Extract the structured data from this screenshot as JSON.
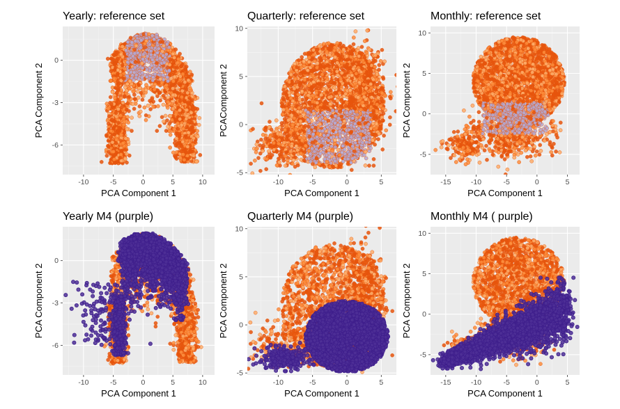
{
  "colors": {
    "reference_dark": "#e6550d",
    "reference_mid": "#fd8d3c",
    "reference_light": "#fdae6b",
    "reference_core": "#b3a9d3",
    "m4_fill": "#4d2f96",
    "m4_edge": "#3f1f8c"
  },
  "chart_data": [
    {
      "id": "yearly-ref",
      "type": "scatter",
      "title": "Yearly: reference set",
      "xlabel": "PCA Component 1",
      "ylabel": "PCA Component 2",
      "xlim": [
        -13.5,
        12
      ],
      "ylim": [
        -8.1,
        2.4
      ],
      "xticks": [
        -10,
        -5,
        0,
        5,
        10
      ],
      "yticks": [
        0,
        -3,
        -6
      ],
      "series": [
        {
          "name": "reference",
          "shape": "yearly",
          "layer": "ref",
          "n": 3200
        }
      ]
    },
    {
      "id": "quarterly-ref",
      "type": "scatter",
      "title": "Quarterly: reference set",
      "xlabel": "PCA Component 1",
      "ylabel": "PCAComponent 2",
      "xlim": [
        -14.5,
        7.2
      ],
      "ylim": [
        -5.2,
        10.2
      ],
      "xticks": [
        -10,
        -5,
        0,
        5
      ],
      "yticks": [
        10,
        5,
        0,
        -5
      ],
      "series": [
        {
          "name": "reference",
          "shape": "quarterly",
          "layer": "ref",
          "n": 3400
        }
      ]
    },
    {
      "id": "monthly-ref",
      "type": "scatter",
      "title": "Monthly: reference set",
      "xlabel": "PCA Component 1",
      "ylabel": "PCA Component 2",
      "xlim": [
        -17.5,
        7
      ],
      "ylim": [
        -7.5,
        10.8
      ],
      "xticks": [
        -15,
        -10,
        -5,
        0,
        5
      ],
      "yticks": [
        10,
        5,
        0,
        -5
      ],
      "series": [
        {
          "name": "reference",
          "shape": "monthly",
          "layer": "ref",
          "n": 3400
        }
      ]
    },
    {
      "id": "yearly-m4",
      "type": "scatter",
      "title": "Yearly M4 (purple)",
      "xlabel": "PCA Component 1",
      "ylabel": "PCA Component 2",
      "xlim": [
        -13.5,
        12
      ],
      "ylim": [
        -8.1,
        2.4
      ],
      "xticks": [
        -10,
        -5,
        0,
        5,
        10
      ],
      "yticks": [
        0,
        -3,
        -6
      ],
      "series": [
        {
          "name": "reference",
          "shape": "yearly",
          "layer": "ref",
          "n": 2000
        },
        {
          "name": "M4",
          "shape": "yearly",
          "layer": "m4",
          "n": 2600
        }
      ]
    },
    {
      "id": "quarterly-m4",
      "type": "scatter",
      "title": "Quarterly M4 (purple)",
      "xlabel": "PCA Component 1",
      "ylabel": "PCA Component 2",
      "xlim": [
        -14.5,
        7.2
      ],
      "ylim": [
        -5.2,
        10.2
      ],
      "xticks": [
        -10,
        -5,
        0,
        5
      ],
      "yticks": [
        10,
        5,
        0,
        -5
      ],
      "series": [
        {
          "name": "reference",
          "shape": "quarterly",
          "layer": "ref",
          "n": 2200
        },
        {
          "name": "M4",
          "shape": "quarterly",
          "layer": "m4",
          "n": 2800
        }
      ]
    },
    {
      "id": "monthly-m4",
      "type": "scatter",
      "title": "Monthly M4 ( purple)",
      "xlabel": "PCA Component 1",
      "ylabel": "PCA Component 2",
      "xlim": [
        -17.5,
        7
      ],
      "ylim": [
        -7.5,
        10.8
      ],
      "xticks": [
        -15,
        -10,
        -5,
        0,
        5
      ],
      "yticks": [
        10,
        5,
        0,
        -5
      ],
      "series": [
        {
          "name": "reference",
          "shape": "monthly",
          "layer": "ref",
          "n": 2200
        },
        {
          "name": "M4",
          "shape": "monthly",
          "layer": "m4",
          "n": 2800
        }
      ]
    }
  ]
}
